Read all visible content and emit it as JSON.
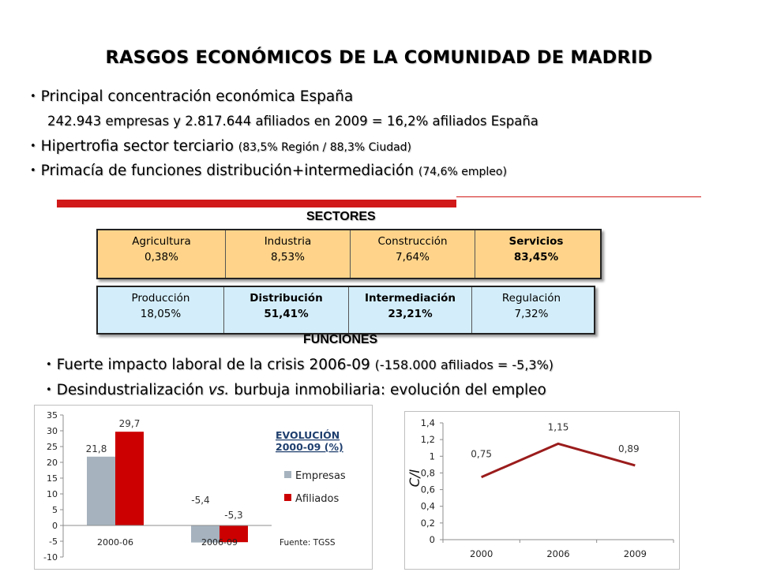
{
  "title": "RASGOS ECONÓMICOS DE LA COMUNIDAD DE MADRID",
  "bullets": {
    "b1": "Principal concentración económica España",
    "b1_detail": "242.943 empresas y 2.817.644 afiliados en 2009 = 16,2% afiliados España",
    "b2": "Hipertrofia sector terciario",
    "b2_note": "(83,5% Región / 88,3% Ciudad)",
    "b3": "Primacía de funciones distribución+intermediación",
    "b3_note": "(74,6% empleo)",
    "b4": "Fuerte impacto laboral de la crisis 2006-09",
    "b4_note": "(-158.000 afiliados = -5,3%)",
    "b5_a": "Desindustrialización",
    "b5_vs": "vs.",
    "b5_b": "burbuja inmobiliaria: evolución del empleo"
  },
  "sectores": {
    "caption": "SECTORES",
    "cells": [
      {
        "label": "Agricultura",
        "value": "0,38%"
      },
      {
        "label": "Industria",
        "value": "8,53%"
      },
      {
        "label": "Construcción",
        "value": "7,64%"
      },
      {
        "label": "Servicios",
        "value": "83,45%"
      }
    ]
  },
  "funciones": {
    "caption": "FUNCIONES",
    "cells": [
      {
        "label": "Producción",
        "value": "18,05%"
      },
      {
        "label": "Distribución",
        "value": "51,41%"
      },
      {
        "label": "Intermediación",
        "value": "23,21%"
      },
      {
        "label": "Regulación",
        "value": "7,32%"
      }
    ]
  },
  "colors": {
    "accent_red": "#d21919",
    "sectores_bg": "#ffd48a",
    "funciones_bg": "#d3eefa",
    "empresas": "#a6b3bf",
    "afiliados": "#cc0000",
    "line": "#9b1c1c"
  },
  "chart_data": [
    {
      "type": "bar",
      "title": "EVOLUCIÓN 2000-09 (%)",
      "title_lines": [
        "EVOLUCIÓN",
        "2000-09 (%)"
      ],
      "source": "Fuente: TGSS",
      "categories": [
        "2000-06",
        "2006-09"
      ],
      "series": [
        {
          "name": "Empresas",
          "values": [
            21.8,
            -5.4
          ],
          "labels": [
            "21,8",
            "-5,4"
          ]
        },
        {
          "name": "Afiliados",
          "values": [
            29.7,
            -5.3
          ],
          "labels": [
            "29,7",
            "-5,3"
          ]
        }
      ],
      "ylim": [
        -10,
        35
      ],
      "yticks": [
        -10,
        -5,
        0,
        5,
        10,
        15,
        20,
        25,
        30,
        35
      ],
      "legend": "right",
      "grid": false
    },
    {
      "type": "line",
      "x": [
        "2000",
        "2006",
        "2009"
      ],
      "series": [
        {
          "values": [
            0.75,
            1.15,
            0.89
          ],
          "labels": [
            "0,75",
            "1,15",
            "0,89"
          ]
        }
      ],
      "ylabel": "C/I",
      "ylim": [
        0,
        1.4
      ],
      "yticks": [
        "0",
        "0,2",
        "0,4",
        "0,6",
        "0,8",
        "1",
        "1,2",
        "1,4"
      ],
      "grid": false
    }
  ]
}
